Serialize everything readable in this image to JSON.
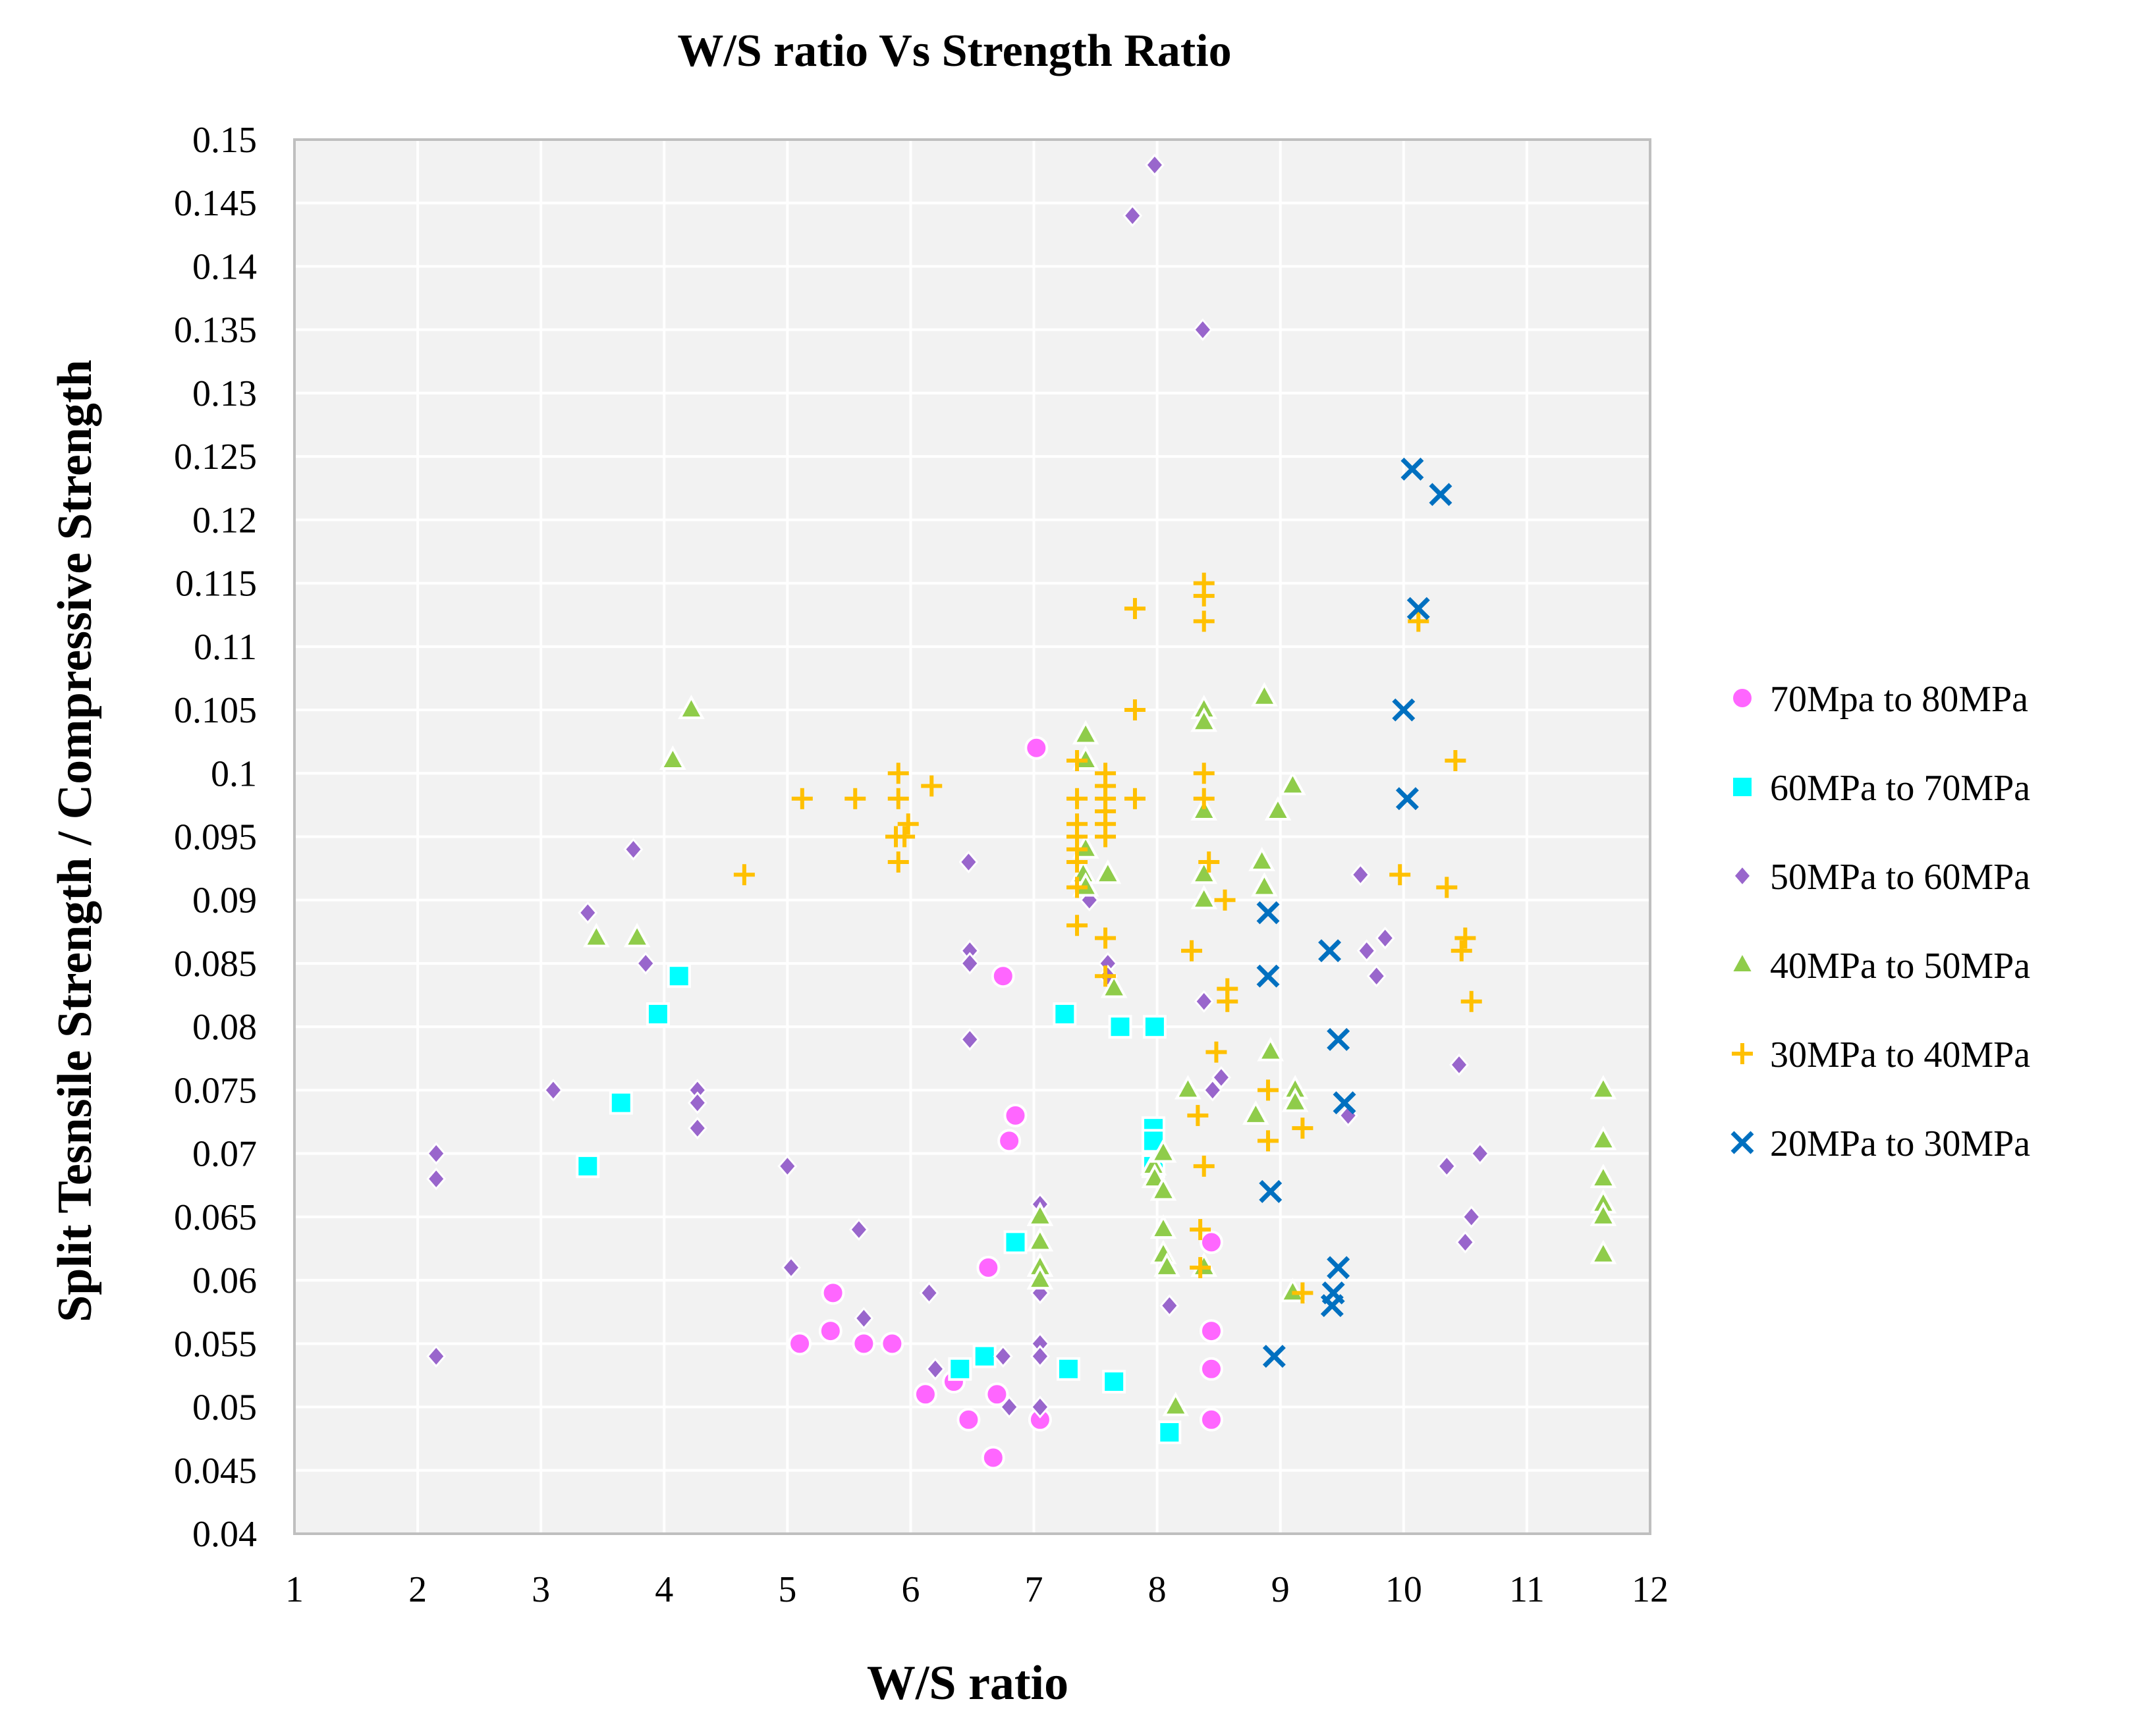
{
  "chart_data": {
    "type": "scatter",
    "title": "W/S ratio Vs Strength Ratio",
    "xlabel": "W/S ratio",
    "ylabel": "Split Tesnsile Strength / Compressive Strength",
    "xlim": [
      1,
      12
    ],
    "ylim": [
      0.04,
      0.15
    ],
    "x_ticks": [
      "1",
      "2",
      "3",
      "4",
      "5",
      "6",
      "7",
      "8",
      "9",
      "10",
      "11",
      "12"
    ],
    "y_ticks": [
      "0.04",
      "0.045",
      "0.05",
      "0.055",
      "0.06",
      "0.065",
      "0.07",
      "0.075",
      "0.08",
      "0.085",
      "0.09",
      "0.095",
      "0.1",
      "0.105",
      "0.11",
      "0.115",
      "0.12",
      "0.125",
      "0.13",
      "0.135",
      "0.14",
      "0.145",
      "0.15"
    ],
    "grid": true,
    "legend_position": "right",
    "series": [
      {
        "name": "70Mpa to 80MPa",
        "marker": "circle",
        "color": "#ff66ff",
        "points": [
          [
            7.02,
            0.102
          ],
          [
            6.75,
            0.084
          ],
          [
            6.85,
            0.073
          ],
          [
            6.8,
            0.071
          ],
          [
            6.63,
            0.061
          ],
          [
            5.37,
            0.059
          ],
          [
            5.35,
            0.056
          ],
          [
            5.1,
            0.055
          ],
          [
            5.62,
            0.055
          ],
          [
            5.85,
            0.055
          ],
          [
            6.12,
            0.051
          ],
          [
            6.35,
            0.052
          ],
          [
            6.47,
            0.049
          ],
          [
            6.7,
            0.051
          ],
          [
            6.67,
            0.046
          ],
          [
            7.05,
            0.049
          ],
          [
            8.44,
            0.063
          ],
          [
            8.44,
            0.056
          ],
          [
            8.44,
            0.053
          ],
          [
            8.44,
            0.049
          ]
        ]
      },
      {
        "name": "60MPa to 70MPa",
        "marker": "square",
        "color": "#00ffff",
        "points": [
          [
            4.12,
            0.084
          ],
          [
            3.95,
            0.081
          ],
          [
            3.65,
            0.074
          ],
          [
            3.38,
            0.069
          ],
          [
            7.25,
            0.081
          ],
          [
            7.7,
            0.08
          ],
          [
            7.98,
            0.08
          ],
          [
            7.97,
            0.072
          ],
          [
            7.97,
            0.071
          ],
          [
            7.97,
            0.069
          ],
          [
            6.85,
            0.063
          ],
          [
            6.6,
            0.054
          ],
          [
            6.4,
            0.053
          ],
          [
            7.28,
            0.053
          ],
          [
            7.65,
            0.052
          ],
          [
            8.1,
            0.048
          ]
        ]
      },
      {
        "name": "50MPa to 60MPa",
        "marker": "diamond",
        "color": "#9966cc",
        "points": [
          [
            7.98,
            0.148
          ],
          [
            7.8,
            0.144
          ],
          [
            8.37,
            0.135
          ],
          [
            2.15,
            0.07
          ],
          [
            2.15,
            0.068
          ],
          [
            2.15,
            0.054
          ],
          [
            3.1,
            0.075
          ],
          [
            3.38,
            0.089
          ],
          [
            3.75,
            0.094
          ],
          [
            3.85,
            0.085
          ],
          [
            4.27,
            0.075
          ],
          [
            4.27,
            0.074
          ],
          [
            4.27,
            0.072
          ],
          [
            5.0,
            0.069
          ],
          [
            5.03,
            0.061
          ],
          [
            5.58,
            0.064
          ],
          [
            5.62,
            0.057
          ],
          [
            6.15,
            0.059
          ],
          [
            6.2,
            0.053
          ],
          [
            6.47,
            0.093
          ],
          [
            6.48,
            0.086
          ],
          [
            6.48,
            0.085
          ],
          [
            6.48,
            0.079
          ],
          [
            6.75,
            0.054
          ],
          [
            6.8,
            0.05
          ],
          [
            7.05,
            0.066
          ],
          [
            7.05,
            0.059
          ],
          [
            7.05,
            0.055
          ],
          [
            7.05,
            0.054
          ],
          [
            7.05,
            0.05
          ],
          [
            7.45,
            0.09
          ],
          [
            7.6,
            0.085
          ],
          [
            7.6,
            0.084
          ],
          [
            8.05,
            0.07
          ],
          [
            8.1,
            0.058
          ],
          [
            8.38,
            0.082
          ],
          [
            8.45,
            0.075
          ],
          [
            8.52,
            0.076
          ],
          [
            9.55,
            0.073
          ],
          [
            9.65,
            0.092
          ],
          [
            9.7,
            0.086
          ],
          [
            9.78,
            0.084
          ],
          [
            9.85,
            0.087
          ],
          [
            10.35,
            0.069
          ],
          [
            10.45,
            0.077
          ],
          [
            10.5,
            0.063
          ],
          [
            10.55,
            0.065
          ],
          [
            10.62,
            0.07
          ]
        ]
      },
      {
        "name": "40MPa to 50MPa",
        "marker": "triangle",
        "color": "#8fcc4a",
        "points": [
          [
            4.22,
            0.105
          ],
          [
            4.07,
            0.101
          ],
          [
            3.45,
            0.087
          ],
          [
            3.78,
            0.087
          ],
          [
            7.05,
            0.065
          ],
          [
            7.05,
            0.063
          ],
          [
            7.05,
            0.061
          ],
          [
            7.05,
            0.06
          ],
          [
            7.42,
            0.103
          ],
          [
            7.42,
            0.101
          ],
          [
            7.42,
            0.094
          ],
          [
            7.4,
            0.092
          ],
          [
            7.42,
            0.091
          ],
          [
            7.6,
            0.092
          ],
          [
            7.65,
            0.083
          ],
          [
            7.97,
            0.069
          ],
          [
            7.98,
            0.068
          ],
          [
            8.05,
            0.07
          ],
          [
            8.05,
            0.067
          ],
          [
            8.05,
            0.064
          ],
          [
            8.05,
            0.062
          ],
          [
            8.08,
            0.061
          ],
          [
            8.15,
            0.05
          ],
          [
            8.25,
            0.075
          ],
          [
            8.38,
            0.105
          ],
          [
            8.38,
            0.104
          ],
          [
            8.38,
            0.097
          ],
          [
            8.38,
            0.092
          ],
          [
            8.38,
            0.09
          ],
          [
            8.38,
            0.061
          ],
          [
            8.8,
            0.073
          ],
          [
            8.85,
            0.093
          ],
          [
            8.87,
            0.091
          ],
          [
            8.87,
            0.106
          ],
          [
            8.92,
            0.078
          ],
          [
            8.98,
            0.097
          ],
          [
            9.1,
            0.099
          ],
          [
            9.12,
            0.075
          ],
          [
            9.12,
            0.074
          ],
          [
            9.1,
            0.059
          ],
          [
            11.62,
            0.075
          ],
          [
            11.62,
            0.071
          ],
          [
            11.62,
            0.068
          ],
          [
            11.62,
            0.066
          ],
          [
            11.62,
            0.065
          ],
          [
            11.62,
            0.062
          ]
        ]
      },
      {
        "name": "30MPa to 40MPa",
        "marker": "plus",
        "color": "#ffc000",
        "points": [
          [
            4.65,
            0.092
          ],
          [
            5.12,
            0.098
          ],
          [
            5.55,
            0.098
          ],
          [
            5.9,
            0.1
          ],
          [
            5.9,
            0.098
          ],
          [
            5.88,
            0.095
          ],
          [
            5.98,
            0.096
          ],
          [
            5.95,
            0.095
          ],
          [
            5.9,
            0.093
          ],
          [
            6.17,
            0.099
          ],
          [
            7.35,
            0.101
          ],
          [
            7.35,
            0.098
          ],
          [
            7.35,
            0.096
          ],
          [
            7.35,
            0.095
          ],
          [
            7.35,
            0.094
          ],
          [
            7.35,
            0.093
          ],
          [
            7.35,
            0.091
          ],
          [
            7.35,
            0.088
          ],
          [
            7.58,
            0.1
          ],
          [
            7.58,
            0.099
          ],
          [
            7.58,
            0.098
          ],
          [
            7.58,
            0.097
          ],
          [
            7.58,
            0.096
          ],
          [
            7.58,
            0.095
          ],
          [
            7.58,
            0.087
          ],
          [
            7.58,
            0.084
          ],
          [
            7.82,
            0.113
          ],
          [
            7.82,
            0.105
          ],
          [
            7.82,
            0.098
          ],
          [
            8.28,
            0.086
          ],
          [
            8.33,
            0.073
          ],
          [
            8.35,
            0.064
          ],
          [
            8.35,
            0.061
          ],
          [
            8.38,
            0.115
          ],
          [
            8.38,
            0.114
          ],
          [
            8.38,
            0.112
          ],
          [
            8.38,
            0.1
          ],
          [
            8.38,
            0.098
          ],
          [
            8.38,
            0.069
          ],
          [
            8.42,
            0.093
          ],
          [
            8.48,
            0.078
          ],
          [
            8.55,
            0.09
          ],
          [
            8.57,
            0.083
          ],
          [
            8.57,
            0.082
          ],
          [
            8.9,
            0.075
          ],
          [
            8.9,
            0.071
          ],
          [
            9.18,
            0.072
          ],
          [
            9.18,
            0.059
          ],
          [
            9.97,
            0.092
          ],
          [
            10.12,
            0.112
          ],
          [
            10.35,
            0.091
          ],
          [
            10.42,
            0.101
          ],
          [
            10.47,
            0.086
          ],
          [
            10.5,
            0.087
          ],
          [
            10.55,
            0.082
          ]
        ]
      },
      {
        "name": "20MPa to 30MPa",
        "marker": "x",
        "color": "#0070c0",
        "points": [
          [
            10.07,
            0.124
          ],
          [
            10.3,
            0.122
          ],
          [
            10.12,
            0.113
          ],
          [
            10.0,
            0.105
          ],
          [
            10.03,
            0.098
          ],
          [
            8.9,
            0.089
          ],
          [
            8.9,
            0.084
          ],
          [
            8.92,
            0.067
          ],
          [
            8.95,
            0.054
          ],
          [
            9.4,
            0.086
          ],
          [
            9.47,
            0.079
          ],
          [
            9.52,
            0.074
          ],
          [
            9.47,
            0.061
          ],
          [
            9.43,
            0.059
          ],
          [
            9.42,
            0.058
          ]
        ]
      }
    ]
  }
}
